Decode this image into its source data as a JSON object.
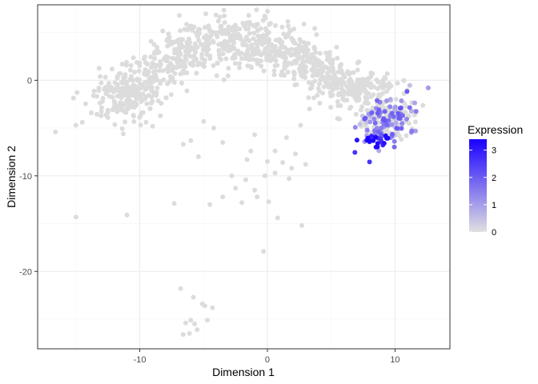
{
  "chart_data": {
    "type": "scatter",
    "title": "",
    "xlabel": "Dimension 1",
    "ylabel": "Dimension 2",
    "xlim": [
      -18,
      14.3
    ],
    "ylim": [
      -28.1,
      7.9
    ],
    "x_ticks": [
      -10,
      0,
      10
    ],
    "y_ticks": [
      0,
      -10,
      -20
    ],
    "x_tick_labels": [
      "-10",
      "0",
      "10"
    ],
    "y_tick_labels": [
      "0",
      "-10",
      "-20"
    ],
    "grid": true,
    "legend": {
      "title": "Expression",
      "placement": "right",
      "ticks": [
        0,
        1,
        2,
        3
      ],
      "tick_labels": [
        "0",
        "1",
        "2",
        "3"
      ],
      "range": [
        0,
        3.4
      ],
      "low_color": "#e0e0e0",
      "high_color": "#1a00ff"
    },
    "colors": {
      "grey_point": "#dcdcdc",
      "panel_border": "#333333",
      "grid_major": "#ebebeb",
      "grid_minor": "#f5f5f5"
    },
    "sparse_points": [
      [
        -16.6,
        -5.4
      ],
      [
        -15.0,
        -14.3
      ],
      [
        -15.0,
        -4.7
      ],
      [
        -14.5,
        -4.4
      ],
      [
        -13.8,
        -3.4
      ],
      [
        -13.2,
        -0.8
      ],
      [
        -12.5,
        -3.9
      ],
      [
        -12.0,
        -2.8
      ],
      [
        -11.0,
        -14.1
      ],
      [
        -9.5,
        -4.4
      ],
      [
        -9.0,
        -4.8
      ],
      [
        -7.3,
        -12.9
      ],
      [
        -6.6,
        -6.7
      ],
      [
        -6.3,
        -1.1
      ],
      [
        -6.0,
        -6.3
      ],
      [
        -5.4,
        -8.0
      ],
      [
        -5.0,
        -4.3
      ],
      [
        -4.5,
        -13.0
      ],
      [
        -4.2,
        -5.0
      ],
      [
        -3.5,
        -6.5
      ],
      [
        -6.8,
        -21.8
      ],
      [
        -5.8,
        -22.7
      ],
      [
        -5.1,
        -23.4
      ],
      [
        -4.9,
        -23.6
      ],
      [
        -4.3,
        -23.8
      ],
      [
        -6.4,
        -25.4
      ],
      [
        -6.0,
        -25.1
      ],
      [
        -5.7,
        -25.5
      ],
      [
        -5.5,
        -26.1
      ],
      [
        -6.1,
        -26.5
      ],
      [
        -6.6,
        -26.6
      ],
      [
        -4.7,
        -25.1
      ],
      [
        -0.3,
        -17.9
      ],
      [
        2.7,
        -15.2
      ],
      [
        0.8,
        -14.4
      ],
      [
        -0.8,
        -12.2
      ],
      [
        0.1,
        -12.7
      ],
      [
        1.7,
        -10.3
      ],
      [
        -1.7,
        -10.4
      ],
      [
        -2.5,
        -11.3
      ],
      [
        -3.5,
        -12.2
      ],
      [
        -2.8,
        -10.0
      ],
      [
        -1.0,
        -11.5
      ],
      [
        -0.2,
        -10.0
      ],
      [
        0.6,
        -9.7
      ],
      [
        1.2,
        -8.6
      ],
      [
        0.6,
        -7.4
      ],
      [
        0.0,
        -8.5
      ],
      [
        1.5,
        -6.0
      ],
      [
        2.6,
        -4.7
      ],
      [
        3.3,
        -3.0
      ],
      [
        4.1,
        -2.4
      ],
      [
        5.5,
        -4.0
      ],
      [
        3.0,
        -8.8
      ],
      [
        -1.3,
        -7.4
      ],
      [
        -1.0,
        -5.7
      ],
      [
        -1.6,
        -8.3
      ],
      [
        2.2,
        -7.7
      ],
      [
        1.9,
        -9.2
      ],
      [
        -2.0,
        -12.8
      ]
    ],
    "cloud_seed": 20240601,
    "big_arc": {
      "count": 900,
      "note": ""
    },
    "cluster": {
      "count": 230
    }
  }
}
